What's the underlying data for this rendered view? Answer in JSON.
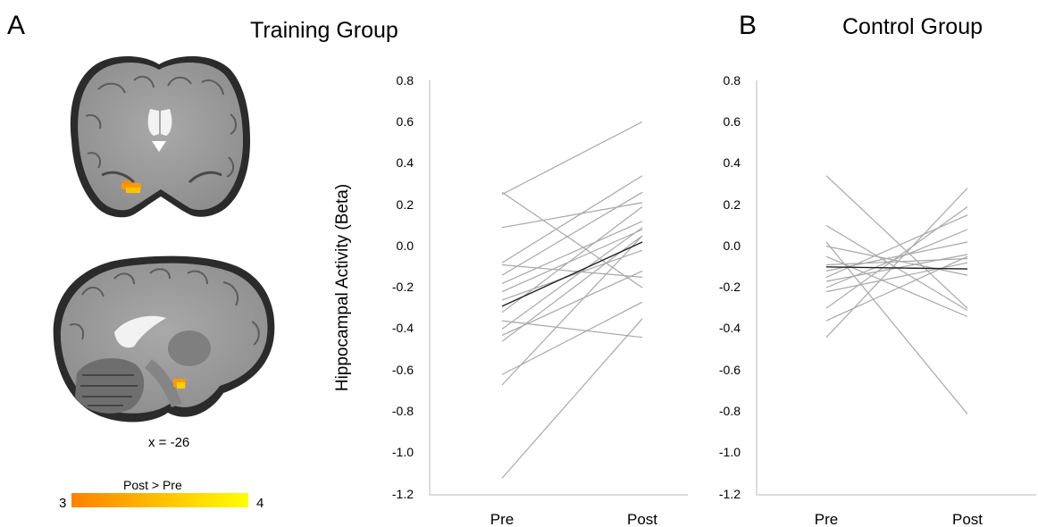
{
  "panel_a": {
    "letter": "A",
    "title": "Training Group",
    "coord_label": "x = -26",
    "colorbar": {
      "title": "Post > Pre",
      "min_label": "3",
      "max_label": "4",
      "color_low": "#ff8000",
      "color_high": "#ffff00"
    }
  },
  "panel_b": {
    "letter": "B",
    "title": "Control Group"
  },
  "chart_data": [
    {
      "type": "line",
      "title": "Training Group",
      "xlabel": "",
      "ylabel": "Hippocampal Activity (Beta)",
      "categories": [
        "Pre",
        "Post"
      ],
      "ylim": [
        -1.2,
        0.8
      ],
      "yticks": [
        "0.8",
        "0.6",
        "0.4",
        "0.2",
        "0.0",
        "-0.2",
        "-0.4",
        "-0.6",
        "-0.8",
        "-1.0",
        "-1.2"
      ],
      "grid": false,
      "line_color": "#a8a8a8",
      "mean_color": "#202020",
      "series": [
        {
          "values": [
            0.26,
            -0.2
          ]
        },
        {
          "values": [
            0.25,
            0.6
          ]
        },
        {
          "values": [
            0.09,
            0.21
          ]
        },
        {
          "values": [
            -0.08,
            0.34
          ]
        },
        {
          "values": [
            -0.09,
            -0.15
          ]
        },
        {
          "values": [
            -0.14,
            0.26
          ]
        },
        {
          "values": [
            -0.18,
            0.12
          ]
        },
        {
          "values": [
            -0.22,
            0.08
          ]
        },
        {
          "values": [
            -0.26,
            -0.02
          ]
        },
        {
          "values": [
            -0.32,
            0.19
          ]
        },
        {
          "values": [
            -0.36,
            -0.44
          ]
        },
        {
          "values": [
            -0.4,
            0.09
          ]
        },
        {
          "values": [
            -0.43,
            -0.12
          ]
        },
        {
          "values": [
            -0.46,
            0.05
          ]
        },
        {
          "values": [
            -0.62,
            -0.27
          ]
        },
        {
          "values": [
            -0.67,
            0.05
          ]
        },
        {
          "values": [
            -1.12,
            -0.35
          ]
        },
        {
          "values": [
            -0.29,
            0.02
          ],
          "mean": true
        }
      ]
    },
    {
      "type": "line",
      "title": "Control Group",
      "xlabel": "",
      "ylabel": "",
      "categories": [
        "Pre",
        "Post"
      ],
      "ylim": [
        -1.2,
        0.8
      ],
      "yticks": [
        "0.8",
        "0.6",
        "0.4",
        "0.2",
        "0.0",
        "-0.2",
        "-0.4",
        "-0.6",
        "-0.8",
        "-1.0",
        "-1.2"
      ],
      "grid": false,
      "line_color": "#a8a8a8",
      "mean_color": "#202020",
      "series": [
        {
          "values": [
            0.34,
            -0.3
          ]
        },
        {
          "values": [
            0.1,
            -0.31
          ]
        },
        {
          "values": [
            0.02,
            -0.81
          ]
        },
        {
          "values": [
            0.0,
            -0.14
          ]
        },
        {
          "values": [
            -0.05,
            -0.34
          ]
        },
        {
          "values": [
            -0.09,
            -0.06
          ]
        },
        {
          "values": [
            -0.12,
            0.02
          ]
        },
        {
          "values": [
            -0.15,
            0.15
          ]
        },
        {
          "values": [
            -0.17,
            -0.04
          ]
        },
        {
          "values": [
            -0.2,
            0.08
          ]
        },
        {
          "values": [
            -0.22,
            -0.08
          ]
        },
        {
          "values": [
            -0.3,
            0.19
          ]
        },
        {
          "values": [
            -0.36,
            -0.05
          ]
        },
        {
          "values": [
            -0.44,
            0.28
          ]
        },
        {
          "values": [
            -0.1,
            -0.11
          ],
          "mean": true
        }
      ]
    }
  ]
}
